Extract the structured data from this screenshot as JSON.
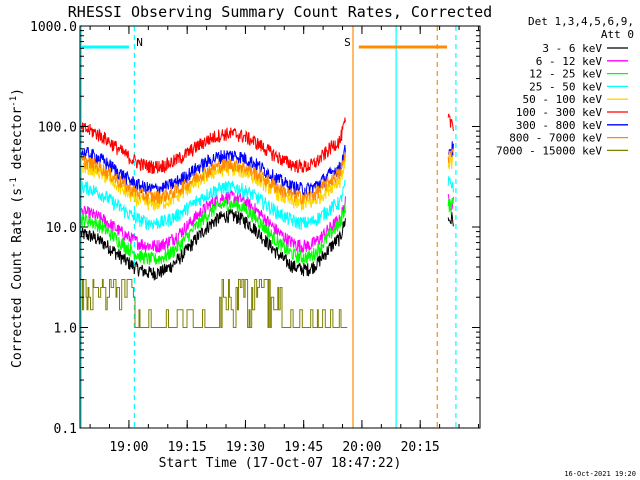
{
  "chart_data": {
    "type": "line",
    "title": "RHESSI Observing Summary Count Rates, Corrected",
    "xlabel": "Start Time (17-Oct-07 18:47:22)",
    "ylabel_main": "Corrected Count Rate (s",
    "ylabel_sup1": "-1",
    "ylabel_mid": " detector",
    "ylabel_sup2": "-1",
    "ylabel_end": ")",
    "yscale": "log",
    "ylim": [
      0.1,
      1000
    ],
    "xlim_min": [
      0,
      103
    ],
    "yticks": [
      {
        "v": 1000,
        "label": "1000.0"
      },
      {
        "v": 100,
        "label": "100.0"
      },
      {
        "v": 10,
        "label": "10.0"
      },
      {
        "v": 1,
        "label": "1.0"
      },
      {
        "v": 0.1,
        "label": "0.1"
      }
    ],
    "xticks": [
      {
        "t": 12.6,
        "label": "19:00"
      },
      {
        "t": 27.6,
        "label": "19:15"
      },
      {
        "t": 42.6,
        "label": "19:30"
      },
      {
        "t": 57.6,
        "label": "19:45"
      },
      {
        "t": 72.6,
        "label": "20:00"
      },
      {
        "t": 87.6,
        "label": "20:15"
      }
    ],
    "legend": {
      "header1": "Det 1,3,4,5,6,9,",
      "header2": "Att 0",
      "position": "top-right"
    },
    "series": [
      {
        "name": "3 - 6 keV",
        "color": "#000000",
        "level": [
          8.5,
          3.5,
          13,
          3.8,
          8
        ]
      },
      {
        "name": "6 - 12 keV",
        "color": "#ff00ff",
        "level": [
          14,
          6.5,
          20,
          6.5,
          12
        ]
      },
      {
        "name": "12 - 25 keV",
        "color": "#00ff00",
        "level": [
          12,
          4.8,
          17,
          5.0,
          11
        ]
      },
      {
        "name": "25 - 50 keV",
        "color": "#00ffff",
        "level": [
          25,
          11,
          25,
          11,
          18
        ]
      },
      {
        "name": "50 - 100 keV",
        "color": "#ffd700",
        "level": [
          40,
          17,
          38,
          17,
          30
        ]
      },
      {
        "name": "100 - 300 keV",
        "color": "#ff0000",
        "level": [
          95,
          40,
          85,
          40,
          75
        ]
      },
      {
        "name": "300 - 800 keV",
        "color": "#0000ff",
        "level": [
          55,
          24,
          52,
          24,
          40
        ]
      },
      {
        "name": "800 - 7000 keV",
        "color": "#ff8c00",
        "level": [
          45,
          20,
          42,
          20,
          35
        ]
      },
      {
        "name": "7000 - 15000 keV",
        "color": "#808000",
        "level": [
          3,
          1,
          3,
          1,
          1
        ]
      }
    ],
    "flags": [
      {
        "label": "N",
        "color": "#00ffff",
        "start": 0,
        "end": 12.6,
        "label_t": 14.5
      },
      {
        "label": "S",
        "color": "#ff8c00",
        "start": 71.8,
        "end": 94.5,
        "label_t": 68
      }
    ],
    "vlines": [
      {
        "t": 0.3,
        "color": "#00ffff",
        "style": "solid"
      },
      {
        "t": 14.0,
        "color": "#00ffff",
        "style": "dashed"
      },
      {
        "t": 70.3,
        "color": "#ff8c00",
        "style": "solid"
      },
      {
        "t": 81.4,
        "color": "#00ffff",
        "style": "solid"
      },
      {
        "t": 92.0,
        "color": "#ff8c00",
        "style": "dashed"
      },
      {
        "t": 96.8,
        "color": "#00ffff",
        "style": "dashed"
      }
    ],
    "footer": "16-Oct-2021 19:20"
  }
}
